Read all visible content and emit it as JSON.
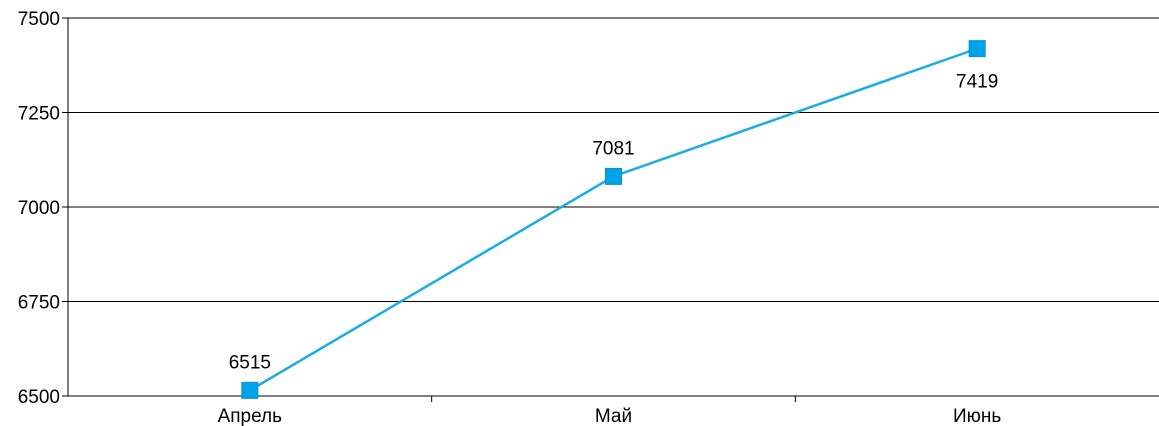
{
  "chart_data": {
    "type": "line",
    "categories": [
      "Апрель",
      "Май",
      "Июнь"
    ],
    "series": [
      {
        "values": [
          6515,
          7081,
          7419
        ]
      }
    ],
    "ylim": [
      6500,
      7500
    ],
    "yticks": [
      6500,
      6750,
      7000,
      7250,
      7500
    ],
    "grid": true,
    "legend": "none",
    "data_labels": true,
    "line_color": "#1aace4",
    "marker_color": "#00a2e8",
    "grid_color": "#000000"
  }
}
